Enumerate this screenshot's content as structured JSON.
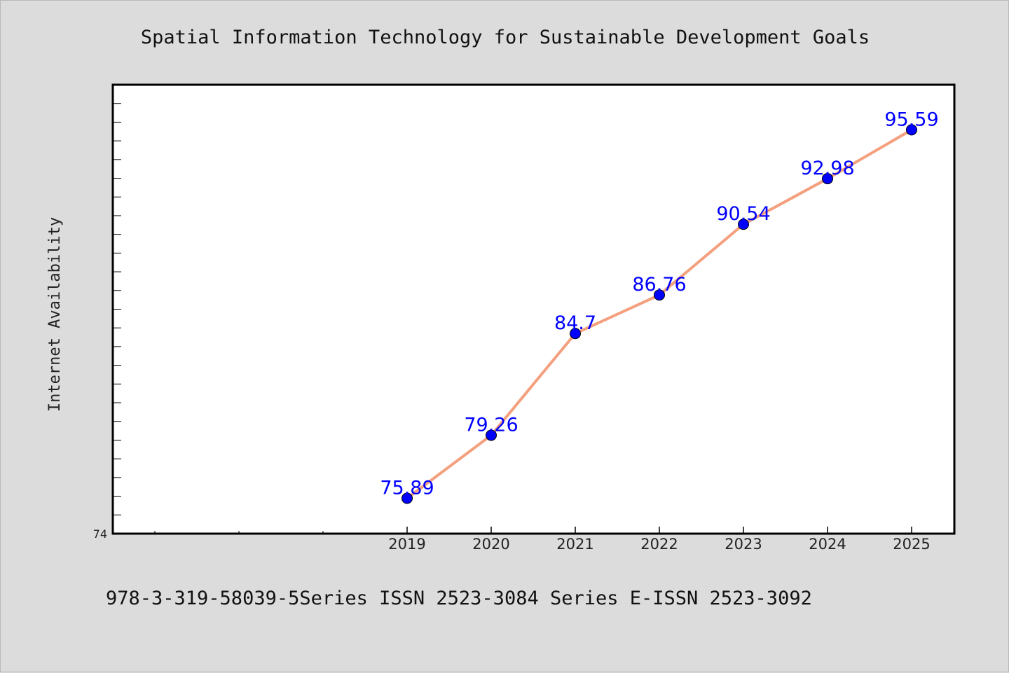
{
  "chart_data": {
    "type": "line",
    "title": "Spatial Information Technology for Sustainable Development Goals",
    "xlabel": "",
    "ylabel": "Internet Availability",
    "categories": [
      "2019",
      "2020",
      "2021",
      "2022",
      "2023",
      "2024",
      "2025"
    ],
    "values": [
      75.89,
      79.26,
      84.7,
      86.76,
      90.54,
      92.98,
      95.59
    ],
    "data_labels": [
      "75.89",
      "79.26",
      "84.7",
      "86.76",
      "90.54",
      "92.98",
      "95.59"
    ],
    "ytick_labels": [
      "74"
    ],
    "ylim": [
      74,
      98
    ],
    "grid": false,
    "line_color": "#f4a07e",
    "marker_color": "#0000ff",
    "label_color": "#0000ff"
  },
  "footer": {
    "text": "978-3-319-58039-5Series ISSN 2523-3084 Series E-ISSN 2523-3092"
  }
}
